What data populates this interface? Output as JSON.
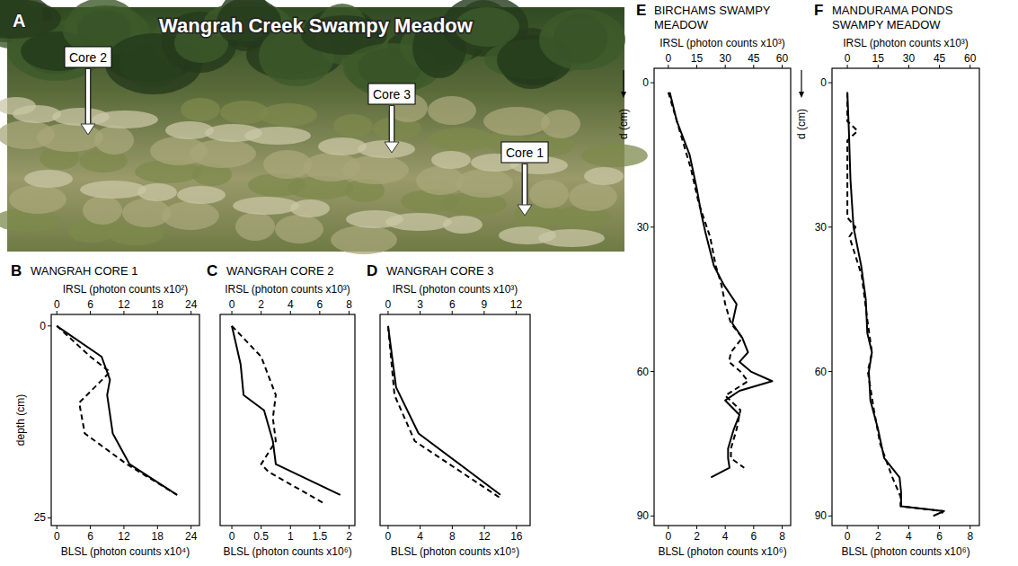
{
  "photo": {
    "label": "A",
    "title": "Wangrah Creek Swampy Meadow",
    "cores": [
      "Core 2",
      "Core 3",
      "Core 1"
    ]
  },
  "chart_data": [
    {
      "type": "line",
      "label": "B",
      "title": "WANGRAH CORE 1",
      "x2label": "IRSL (photon counts x10²)",
      "xlabel": "BLSL (photon counts x10⁴)",
      "ylabel": "depth (cm)",
      "x2lim": [
        -1,
        25.5
      ],
      "x2ticks": [
        0,
        6,
        12,
        18,
        24
      ],
      "xlim": [
        -1,
        25.5
      ],
      "xticks": [
        0,
        6,
        12,
        18,
        24
      ],
      "ylim": [
        -1.5,
        26
      ],
      "yticks": [
        0,
        25
      ],
      "series": [
        {
          "axis": "x",
          "line_style": "solid",
          "color": "#000000",
          "values": [
            0,
            8,
            9.5,
            9,
            10,
            13,
            21.5
          ],
          "depth": [
            0,
            4,
            7,
            9,
            14,
            18,
            22
          ]
        },
        {
          "axis": "x2",
          "line_style": "dashed",
          "color": "#000000",
          "values": [
            0,
            6,
            9.5,
            4,
            5,
            12.5,
            21.5
          ],
          "depth": [
            0,
            4,
            6,
            10,
            14,
            18,
            22
          ]
        }
      ]
    },
    {
      "type": "line",
      "label": "C",
      "title": "WANGRAH CORE 2",
      "tick_labels": "x",
      "x2label": "IRSL (photon counts x10³)",
      "xlabel": "BLSL (photon counts x10⁶)",
      "x2lim": [
        -0.8,
        8.4
      ],
      "x2ticks": [
        0,
        2,
        4,
        6,
        8
      ],
      "xlim": [
        -0.2,
        2.1
      ],
      "xticks": [
        0,
        0.5,
        1,
        1.5,
        2
      ],
      "ylim": [
        -1.5,
        26
      ],
      "series": [
        {
          "axis": "x",
          "line_style": "solid",
          "color": "#000000",
          "values": [
            0,
            0.15,
            0.2,
            0.55,
            0.7,
            0.75,
            1.85
          ],
          "depth": [
            0,
            5,
            9,
            11,
            15,
            18,
            22
          ]
        },
        {
          "axis": "x2",
          "line_style": "dashed",
          "color": "#000000",
          "values": [
            0,
            2,
            3,
            2.8,
            3,
            2,
            2.5,
            6.2
          ],
          "depth": [
            0,
            4,
            9,
            12,
            15,
            18,
            19,
            23
          ]
        }
      ]
    },
    {
      "type": "line",
      "label": "D",
      "title": "WANGRAH CORE 3",
      "tick_labels": "x",
      "x2label": "IRSL (photon counts x10³)",
      "xlabel": "BLSL (photon counts x10⁵)",
      "x2lim": [
        -0.75,
        13.3
      ],
      "x2ticks": [
        0,
        3,
        6,
        9,
        12
      ],
      "xlim": [
        -1,
        17.7
      ],
      "xticks": [
        0,
        4,
        8,
        12,
        16
      ],
      "ylim": [
        -1.5,
        26
      ],
      "series": [
        {
          "axis": "x",
          "line_style": "solid",
          "color": "#000000",
          "values": [
            0,
            1,
            3.8,
            14
          ],
          "depth": [
            0,
            8,
            14,
            22
          ]
        },
        {
          "axis": "x2",
          "line_style": "dashed",
          "color": "#000000",
          "values": [
            0,
            0.6,
            2.5,
            10.6
          ],
          "depth": [
            0,
            9,
            15,
            22.5
          ]
        }
      ]
    },
    {
      "type": "line",
      "label": "E",
      "title": "BIRCHAMS SWAMPY MEADOW",
      "x2label": "IRSL (photon counts x10³)",
      "xlabel": "BLSL (photon counts x10⁶)",
      "ylabel": "d (cm)",
      "x2lim": [
        -7.5,
        64.5
      ],
      "x2ticks": [
        0,
        15,
        30,
        45,
        60
      ],
      "xlim": [
        -1,
        8.6
      ],
      "xticks": [
        0,
        2,
        4,
        6,
        8
      ],
      "ylim": [
        -3,
        92
      ],
      "yticks": [
        0,
        30,
        60,
        90
      ],
      "series": [
        {
          "axis": "x",
          "line_style": "solid",
          "color": "#000000",
          "values": [
            0.1,
            0.6,
            1.5,
            2,
            2.3,
            2.6,
            3.2,
            3.9,
            4.8,
            4.5,
            5.2,
            5.6,
            5,
            5.8,
            7.3,
            5,
            4,
            5,
            4.6,
            4.2,
            4.2,
            4.3,
            3
          ],
          "depth": [
            2,
            8,
            15,
            22,
            27,
            31,
            38,
            42,
            46,
            50,
            53,
            56,
            58,
            60,
            62,
            64,
            66,
            69,
            72,
            76,
            78,
            80,
            82
          ]
        },
        {
          "axis": "x2",
          "line_style": "dashed",
          "color": "#000000",
          "values": [
            0,
            6,
            12,
            16,
            22,
            25,
            28,
            30,
            33,
            39,
            33,
            32,
            38,
            42,
            30,
            38,
            36,
            33,
            33,
            40
          ],
          "depth": [
            2,
            10,
            18,
            25,
            32,
            38,
            42,
            46,
            50,
            53,
            56,
            58,
            60,
            62,
            65,
            68,
            72,
            76,
            78,
            80
          ]
        }
      ]
    },
    {
      "type": "line",
      "label": "F",
      "title": "MANDURAMA PONDS SWAMPY MEADOW",
      "x2label": "IRSL (photon counts x10³)",
      "xlabel": "BLSL (photon counts x10⁶)",
      "ylabel": "d (cm)",
      "x2lim": [
        -7.5,
        64.5
      ],
      "x2ticks": [
        0,
        15,
        30,
        45,
        60
      ],
      "xlim": [
        -1,
        8.6
      ],
      "xticks": [
        0,
        2,
        4,
        6,
        8
      ],
      "ylim": [
        -3,
        92
      ],
      "yticks": [
        0,
        30,
        60,
        90
      ],
      "series": [
        {
          "axis": "x",
          "line_style": "solid",
          "color": "#000000",
          "values": [
            0,
            0.1,
            0.2,
            0.4,
            0.9,
            1.2,
            1.3,
            1.6,
            1.4,
            1.5,
            2,
            2.4,
            3.4,
            3.5,
            3.5,
            6.3,
            5.6
          ],
          "depth": [
            2,
            10,
            20,
            30,
            38,
            45,
            52,
            56,
            60,
            66,
            72,
            78,
            82,
            85,
            88,
            89,
            90
          ]
        },
        {
          "axis": "x2",
          "line_style": "dashed",
          "color": "#000000",
          "values": [
            0,
            0,
            5,
            0,
            0,
            0,
            4,
            1,
            7,
            10,
            12,
            10,
            13,
            16,
            22,
            26,
            26,
            47,
            45
          ],
          "depth": [
            2,
            8,
            10,
            12,
            20,
            28,
            30,
            32,
            40,
            50,
            56,
            60,
            68,
            75,
            82,
            86,
            88,
            89,
            90
          ]
        }
      ]
    }
  ]
}
